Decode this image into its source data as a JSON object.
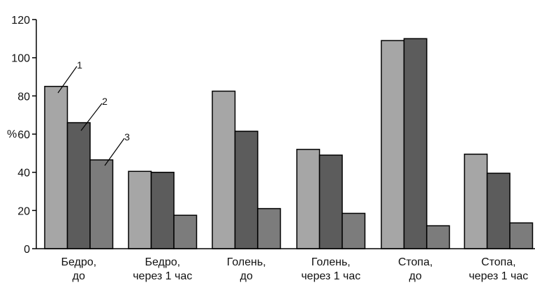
{
  "chart_data": {
    "type": "bar",
    "title": "",
    "xlabel": "",
    "ylabel": "%",
    "ylim": [
      0,
      120
    ],
    "yticks": [
      0,
      20,
      40,
      60,
      80,
      100,
      120
    ],
    "grid": false,
    "legend": "none",
    "categories": [
      [
        "Бедро,",
        "до"
      ],
      [
        "Бедро,",
        "через 1 час"
      ],
      [
        "Голень,",
        "до"
      ],
      [
        "Голень,",
        "через 1 час"
      ],
      [
        "Стопа,",
        "до"
      ],
      [
        "Стопа,",
        "через 1 час"
      ]
    ],
    "series": [
      {
        "name": "1",
        "color": "#a6a6a6",
        "values": [
          85,
          40.5,
          82.5,
          52,
          109,
          49.5
        ]
      },
      {
        "name": "2",
        "color": "#5c5c5c",
        "values": [
          66,
          40,
          61.5,
          49,
          110,
          39.5
        ]
      },
      {
        "name": "3",
        "color": "#7c7c7c",
        "values": [
          46.5,
          17.5,
          21,
          18.5,
          12,
          13.5
        ]
      }
    ],
    "annotations": [
      "1",
      "2",
      "3"
    ]
  }
}
